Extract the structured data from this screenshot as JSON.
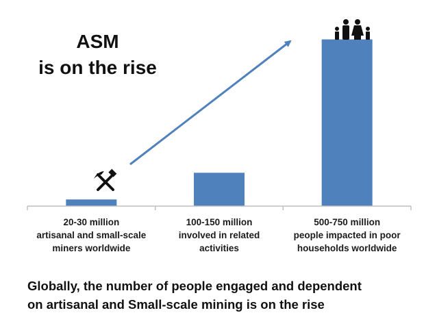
{
  "heading": {
    "line1": "ASM",
    "line2": "is on the rise"
  },
  "caption": {
    "line1": "Globally, the number of people engaged and dependent",
    "line2": "on artisanal and Small-scale mining is on the rise"
  },
  "colors": {
    "bar": "#4f81bd",
    "arrow": "#4f81bd",
    "axis": "#bfbfbf",
    "icon": "#111111"
  },
  "icons": {
    "miners": "pick-and-hammer-icon",
    "households": "family-icon"
  },
  "chart_data": {
    "type": "bar",
    "categories": [
      [
        "20-30 million",
        "artisanal and small-scale",
        "miners worldwide"
      ],
      [
        "100-150 million",
        "involved in related",
        "activities"
      ],
      [
        "500-750 million",
        "people impacted in poor",
        "households worldwide"
      ]
    ],
    "values": [
      25,
      125,
      625
    ],
    "ylim": [
      0,
      670
    ],
    "grid": false,
    "legend": "none",
    "trend_arrow": true
  }
}
